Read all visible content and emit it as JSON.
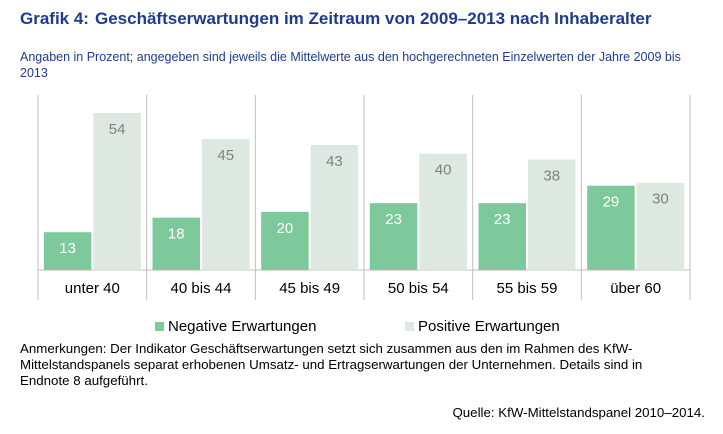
{
  "chart_data": {
    "type": "bar",
    "title_label": "Grafik 4:",
    "title": "Geschäftserwartungen im Zeitraum von 2009–2013 nach Inhaberalter",
    "subtitle": "Angaben in Prozent; angegeben sind jeweils die Mittelwerte aus den hochgerechneten Einzelwerten der Jahre 2009 bis 2013",
    "categories": [
      "unter 40",
      "40 bis 44",
      "45 bis 49",
      "50 bis 54",
      "55 bis 59",
      "über 60"
    ],
    "series": [
      {
        "name": "Negative Erwartungen",
        "color": "#7dc99b",
        "values": [
          13,
          18,
          20,
          23,
          23,
          29
        ]
      },
      {
        "name": "Positive Erwartungen",
        "color": "#dde8e1",
        "values": [
          54,
          45,
          43,
          40,
          38,
          30
        ]
      }
    ],
    "note": "Anmerkungen: Der Indikator Geschäftserwartungen setzt sich zusammen aus den im Rahmen des KfW-Mittelstandspanels separat erhobenen Umsatz- und Ertragserwartungen der Unternehmen. Details sind in Endnote 8 aufgeführt.",
    "source": "Quelle: KfW-Mittelstandspanel 2010–2014."
  }
}
